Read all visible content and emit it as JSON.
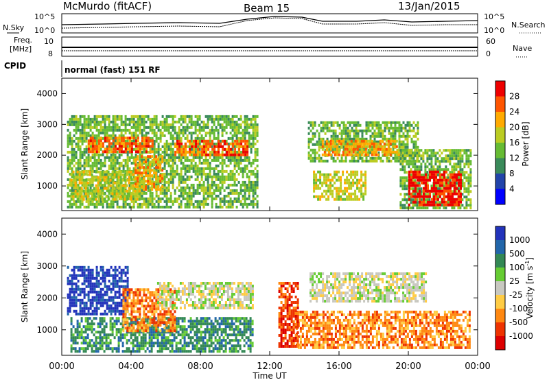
{
  "header": {
    "station": "McMurdo (fitACF)",
    "beam": "Beam 15",
    "date": "13/Jan/2015"
  },
  "top_panels": {
    "nsky_label": "N.Sky",
    "nsearch_label": "N.Search",
    "noise_tick_hi": "10^5",
    "noise_tick_lo": "10^0",
    "freq_label": "Freq.",
    "freq_unit": "[MHz]",
    "freq_tick_hi": "10",
    "freq_tick_lo": "8",
    "nave_label": "Nave",
    "nave_tick_hi": "60",
    "nave_tick_lo": "0",
    "cpid_label": "CPID",
    "cpid_value": "normal (fast) 151 RF"
  },
  "chart_data": [
    {
      "type": "heatmap",
      "panel": "power",
      "ylabel": "Slant Range [km]",
      "xlabel": "Time UT",
      "x_ticks": [
        "00:00",
        "04:00",
        "08:00",
        "12:00",
        "16:00",
        "20:00",
        "00:00"
      ],
      "xlim_hours": [
        0,
        24
      ],
      "ylim_km": [
        200,
        4500
      ],
      "y_ticks": [
        1000,
        2000,
        3000,
        4000
      ],
      "colorbar": {
        "label": "Power [dB]",
        "ticks": [
          "4",
          "8",
          "12",
          "16",
          "20",
          "24",
          "28"
        ],
        "colors": [
          "#0000ff",
          "#2244aa",
          "#3a8a5a",
          "#66bb33",
          "#bbcc22",
          "#ffaa00",
          "#ff5500",
          "#ee0000"
        ]
      },
      "regions": [
        {
          "t0": 0.3,
          "t1": 11.3,
          "r0": 300,
          "r1": 3300,
          "level": 3
        },
        {
          "t0": 1.5,
          "t1": 5.2,
          "r0": 2100,
          "r1": 2600,
          "level": 6
        },
        {
          "t0": 6.5,
          "t1": 10.7,
          "r0": 2000,
          "r1": 2500,
          "level": 6
        },
        {
          "t0": 0.5,
          "t1": 4.5,
          "r0": 600,
          "r1": 1500,
          "level": 4
        },
        {
          "t0": 4.2,
          "t1": 5.8,
          "r0": 900,
          "r1": 2000,
          "level": 5
        },
        {
          "t0": 14.2,
          "t1": 20.5,
          "r0": 1800,
          "r1": 3100,
          "level": 3
        },
        {
          "t0": 15.0,
          "t1": 19.5,
          "r0": 2000,
          "r1": 2500,
          "level": 5
        },
        {
          "t0": 14.5,
          "t1": 17.5,
          "r0": 600,
          "r1": 1500,
          "level": 4
        },
        {
          "t0": 19.5,
          "t1": 23.6,
          "r0": 300,
          "r1": 2200,
          "level": 3
        },
        {
          "t0": 20.0,
          "t1": 23.0,
          "r0": 400,
          "r1": 1500,
          "level": 7
        }
      ]
    },
    {
      "type": "heatmap",
      "panel": "velocity",
      "ylabel": "Slant Range [km]",
      "xlabel": "Time UT",
      "x_ticks": [
        "00:00",
        "04:00",
        "08:00",
        "12:00",
        "16:00",
        "20:00",
        "00:00"
      ],
      "xlim_hours": [
        0,
        24
      ],
      "ylim_km": [
        200,
        4500
      ],
      "y_ticks": [
        1000,
        2000,
        3000,
        4000
      ],
      "colorbar": {
        "label": "Velocity [m s^-1]",
        "ticks": [
          "1000",
          "500",
          "100",
          "25",
          "-25",
          "-100",
          "-500",
          "-1000"
        ],
        "colors": [
          "#2233bb",
          "#2266aa",
          "#338855",
          "#66cc33",
          "#c8c8c0",
          "#ffcc44",
          "#ff8811",
          "#ee3300",
          "#dd0000"
        ]
      },
      "regions": [
        {
          "t0": 0.3,
          "t1": 3.8,
          "r0": 1500,
          "r1": 3000,
          "level": 0
        },
        {
          "t0": 0.5,
          "t1": 11.0,
          "r0": 300,
          "r1": 1400,
          "level": 2
        },
        {
          "t0": 3.5,
          "t1": 6.5,
          "r0": 1000,
          "r1": 2300,
          "level": 6
        },
        {
          "t0": 5.5,
          "t1": 11.0,
          "r0": 1700,
          "r1": 2500,
          "level": 4
        },
        {
          "t0": 14.3,
          "t1": 21.0,
          "r0": 1900,
          "r1": 2800,
          "level": 4
        },
        {
          "t0": 13.5,
          "t1": 23.5,
          "r0": 400,
          "r1": 1600,
          "level": 6
        },
        {
          "t0": 12.5,
          "t1": 13.6,
          "r0": 500,
          "r1": 2500,
          "level": 7
        }
      ]
    }
  ]
}
